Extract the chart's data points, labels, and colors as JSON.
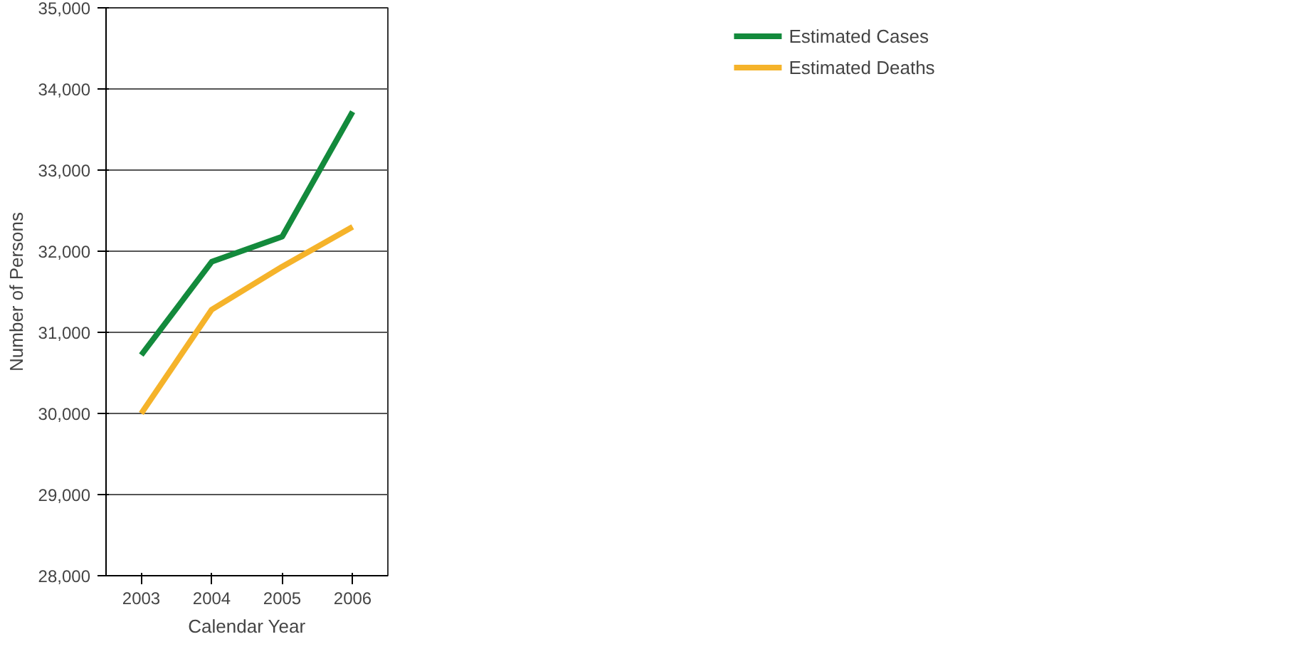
{
  "chart_data": {
    "type": "line",
    "xlabel": "Calendar Year",
    "ylabel": "Number of Persons",
    "x": [
      2003,
      2004,
      2005,
      2006
    ],
    "xlim": [
      2002.5,
      2006.5
    ],
    "xticks": [
      {
        "value": 2003,
        "label": "2003"
      },
      {
        "value": 2004,
        "label": "2004"
      },
      {
        "value": 2005,
        "label": "2005"
      },
      {
        "value": 2006,
        "label": "2006"
      }
    ],
    "ylim": [
      28000,
      35000
    ],
    "yticks": [
      {
        "value": 28000,
        "label": "28,000"
      },
      {
        "value": 29000,
        "label": "29,000"
      },
      {
        "value": 30000,
        "label": "30,000"
      },
      {
        "value": 31000,
        "label": "31,000"
      },
      {
        "value": 32000,
        "label": "32,000"
      },
      {
        "value": 33000,
        "label": "33,000"
      },
      {
        "value": 34000,
        "label": "34,000"
      },
      {
        "value": 35000,
        "label": "35,000"
      }
    ],
    "series": [
      {
        "name": "Estimated Cases",
        "color": "#138a3c",
        "values": [
          30720,
          31870,
          32180,
          33720
        ]
      },
      {
        "name": "Estimated Deaths",
        "color": "#f5b32a",
        "values": [
          30000,
          31280,
          31810,
          32300
        ]
      }
    ],
    "grid": "y",
    "legend": "top right",
    "marker": "none",
    "line_style": "solid"
  }
}
